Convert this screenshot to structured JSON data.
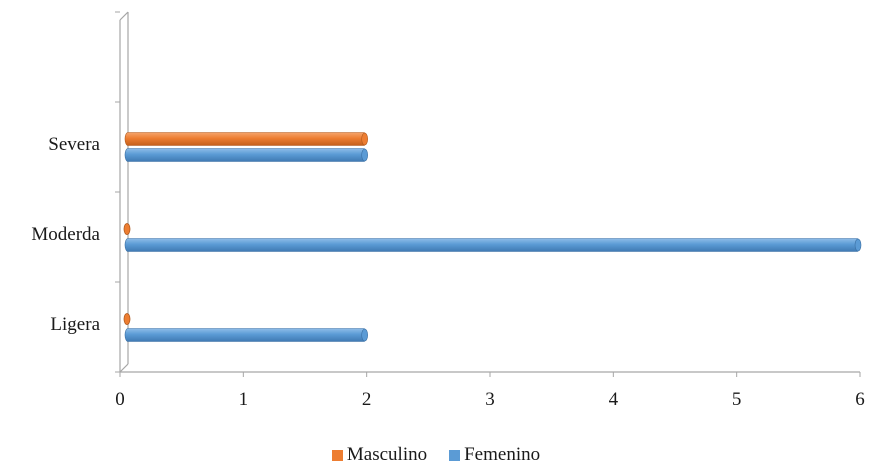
{
  "chart_data": {
    "type": "bar",
    "orientation": "horizontal",
    "categories": [
      "Ligera",
      "Moderda",
      "Severa"
    ],
    "series": [
      {
        "name": "Masculino",
        "color": "#ed7d31",
        "values": [
          0,
          0,
          2
        ]
      },
      {
        "name": "Femenino",
        "color": "#5b9bd5",
        "values": [
          2,
          6,
          2
        ]
      }
    ],
    "xlim": [
      0,
      6
    ],
    "xticks": [
      "0",
      "1",
      "2",
      "3",
      "4",
      "5",
      "6"
    ],
    "grid": false,
    "legend_position": "bottom"
  }
}
